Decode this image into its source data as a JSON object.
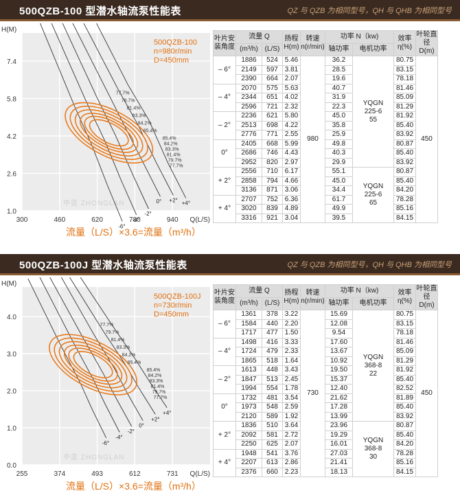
{
  "sections": [
    {
      "title": "500QZB-100 型潜水轴流泵性能表",
      "note": "QZ 与 QZB 为相同型号，QH 与 QHB 为相同型号",
      "params": [
        "500QZB-100",
        "n=980r/min",
        "D=450mm"
      ],
      "flow_caption": "流量（L/S）×3.6=流量（m³/h）",
      "watermark": "中蓝 ZHONGLAN",
      "chart_data": {
        "type": "line",
        "title": "",
        "xlabel": "Q(L/S)",
        "ylabel": "H(M)",
        "xlim": [
          300,
          1100
        ],
        "ylim": [
          1.0,
          8.6
        ],
        "x_ticks": [
          300,
          460,
          620,
          780,
          940
        ],
        "y_ticks": [
          1.0,
          2.6,
          4.2,
          5.8,
          7.4
        ],
        "blade_angle_labels": [
          "-6°",
          "-4°",
          "-2°",
          "0°",
          "+2°",
          "+4°"
        ],
        "efficiency_labels": [
          "77.7%",
          "79.7%",
          "81.4%",
          "83.3%",
          "84.2%",
          "85.4%"
        ],
        "series": [
          {
            "name": "-6°",
            "x": [
              524,
              597,
              664
            ],
            "y": [
              5.46,
              3.81,
              2.07
            ]
          },
          {
            "name": "-4°",
            "x": [
              575,
              651,
              721
            ],
            "y": [
              5.63,
              4.02,
              2.32
            ]
          },
          {
            "name": "-2°",
            "x": [
              621,
              698,
              771
            ],
            "y": [
              5.8,
              4.22,
              2.55
            ]
          },
          {
            "name": "0°",
            "x": [
              668,
              746,
              820
            ],
            "y": [
              5.99,
              4.43,
              2.97
            ]
          },
          {
            "name": "+2°",
            "x": [
              710,
              794,
              871
            ],
            "y": [
              6.17,
              4.66,
              3.06
            ]
          },
          {
            "name": "+4°",
            "x": [
              752,
              839,
              921
            ],
            "y": [
              6.36,
              4.89,
              3.04
            ]
          }
        ]
      },
      "table": {
        "headers": {
          "blade": "叶片安装角度",
          "flow": "流量 Q",
          "flow_m3h": "(m³/h)",
          "flow_ls": "(L/S)",
          "head": "扬程H(m)",
          "speed": "转速n(r/min)",
          "power": "功率 N（kw)",
          "shaft": "轴功率",
          "motor": "电机功率",
          "eff": "效率η(%)",
          "dia": "叶轮直径D(m)"
        },
        "speed": "980",
        "diameter": "450",
        "motors": [
          {
            "rows": 12,
            "label": "YQGN 225-6 55"
          },
          {
            "rows": 6,
            "label": "YQGN 225-6 65"
          }
        ],
        "groups": [
          {
            "angle": "– 6°",
            "rows": [
              [
                "1886",
                "524",
                "5.46",
                "36.2",
                "80.75"
              ],
              [
                "2149",
                "597",
                "3.81",
                "28.5",
                "83.15"
              ],
              [
                "2390",
                "664",
                "2.07",
                "19.6",
                "78.18"
              ]
            ]
          },
          {
            "angle": "– 4°",
            "rows": [
              [
                "2070",
                "575",
                "5.63",
                "40.7",
                "81.46"
              ],
              [
                "2344",
                "651",
                "4.02",
                "31.9",
                "85.09"
              ],
              [
                "2596",
                "721",
                "2.32",
                "22.3",
                "81.29"
              ]
            ]
          },
          {
            "angle": "– 2°",
            "rows": [
              [
                "2236",
                "621",
                "5.80",
                "45.0",
                "81.92"
              ],
              [
                "2513",
                "698",
                "4.22",
                "35.8",
                "85.40"
              ],
              [
                "2776",
                "771",
                "2.55",
                "25.9",
                "83.92"
              ]
            ]
          },
          {
            "angle": "0°",
            "rows": [
              [
                "2405",
                "668",
                "5.99",
                "49.8",
                "80.87"
              ],
              [
                "2686",
                "746",
                "4.43",
                "40.3",
                "85.40"
              ],
              [
                "2952",
                "820",
                "2.97",
                "29.9",
                "83.92"
              ]
            ]
          },
          {
            "angle": "+ 2°",
            "rows": [
              [
                "2556",
                "710",
                "6.17",
                "55.1",
                "80.87"
              ],
              [
                "2858",
                "794",
                "4.66",
                "45.0",
                "85.40"
              ],
              [
                "3136",
                "871",
                "3.06",
                "34.4",
                "84.20"
              ]
            ]
          },
          {
            "angle": "+ 4°",
            "rows": [
              [
                "2707",
                "752",
                "6.36",
                "61.7",
                "78.28"
              ],
              [
                "3020",
                "839",
                "4.89",
                "49.9",
                "85.16"
              ],
              [
                "3316",
                "921",
                "3.04",
                "39.5",
                "84.15"
              ]
            ]
          }
        ]
      }
    },
    {
      "title": "500QZB-100J 型潜水轴流泵性能表",
      "note": "QZ 与 QZB 为相同型号，QH 与 QHB 为相同型号",
      "params": [
        "500QZB-100J",
        "n=730r/min",
        "D=450mm"
      ],
      "flow_caption": "流量（L/S）×3.6=流量（m³/h）",
      "watermark": "中蓝 ZHONGLAN",
      "chart_data": {
        "type": "line",
        "title": "",
        "xlabel": "Q(L/S)",
        "ylabel": "H(M)",
        "xlim": [
          255,
          850
        ],
        "ylim": [
          0.0,
          4.8
        ],
        "x_ticks": [
          255,
          374,
          493,
          612,
          731
        ],
        "y_ticks": [
          0.0,
          1.0,
          2.0,
          3.0,
          4.0
        ],
        "blade_angle_labels": [
          "-6°",
          "-4°",
          "-2°",
          "0°",
          "+2°",
          "+4°"
        ],
        "efficiency_labels": [
          "77.7%",
          "79.7%",
          "81.4%",
          "83.3%",
          "84.2%",
          "85.4%"
        ],
        "series": [
          {
            "name": "-6°",
            "x": [
              378,
              440,
              477
            ],
            "y": [
              3.22,
              2.2,
              1.5
            ]
          },
          {
            "name": "-4°",
            "x": [
              416,
              479,
              518
            ],
            "y": [
              3.33,
              2.33,
              1.64
            ]
          },
          {
            "name": "-2°",
            "x": [
              448,
              513,
              554
            ],
            "y": [
              3.43,
              2.45,
              1.78
            ]
          },
          {
            "name": "0°",
            "x": [
              481,
              548,
              589
            ],
            "y": [
              3.54,
              2.59,
              1.92
            ]
          },
          {
            "name": "+2°",
            "x": [
              510,
              581,
              625
            ],
            "y": [
              3.64,
              2.72,
              2.07
            ]
          },
          {
            "name": "+4°",
            "x": [
              541,
              613,
              660
            ],
            "y": [
              3.76,
              2.86,
              2.23
            ]
          }
        ]
      },
      "table": {
        "headers": {
          "blade": "叶片安装角度",
          "flow": "流量 Q",
          "flow_m3h": "(m³/h)",
          "flow_ls": "(L/S)",
          "head": "扬程H(m)",
          "speed": "转速n(r/min)",
          "power": "功率 N（kw)",
          "shaft": "轴功率",
          "motor": "电机功率",
          "eff": "效率η(%)",
          "dia": "叶轮直径D(m)"
        },
        "speed": "730",
        "diameter": "450",
        "motors": [
          {
            "rows": 12,
            "label": "YQGN 368-8 22"
          },
          {
            "rows": 6,
            "label": "YQGN 368-8 30"
          }
        ],
        "groups": [
          {
            "angle": "– 6°",
            "rows": [
              [
                "1361",
                "378",
                "3.22",
                "15.69",
                "80.75"
              ],
              [
                "1584",
                "440",
                "2.20",
                "12.08",
                "83.15"
              ],
              [
                "1717",
                "477",
                "1.50",
                "9.54",
                "78.18"
              ]
            ]
          },
          {
            "angle": "– 4°",
            "rows": [
              [
                "1498",
                "416",
                "3.33",
                "17.60",
                "81.46"
              ],
              [
                "1724",
                "479",
                "2.33",
                "13.67",
                "85.09"
              ],
              [
                "1865",
                "518",
                "1.64",
                "10.92",
                "81.29"
              ]
            ]
          },
          {
            "angle": "– 2°",
            "rows": [
              [
                "1613",
                "448",
                "3.43",
                "19.50",
                "81.92"
              ],
              [
                "1847",
                "513",
                "2.45",
                "15.37",
                "85.40"
              ],
              [
                "1994",
                "554",
                "1.78",
                "12.40",
                "82.52"
              ]
            ]
          },
          {
            "angle": "0°",
            "rows": [
              [
                "1732",
                "481",
                "3.54",
                "21.62",
                "81.89"
              ],
              [
                "1973",
                "548",
                "2.59",
                "17.28",
                "85.40"
              ],
              [
                "2120",
                "589",
                "1.92",
                "13.99",
                "83.92"
              ]
            ]
          },
          {
            "angle": "+ 2°",
            "rows": [
              [
                "1836",
                "510",
                "3.64",
                "23.96",
                "80.87"
              ],
              [
                "2092",
                "581",
                "2.72",
                "19.29",
                "85.40"
              ],
              [
                "2250",
                "625",
                "2.07",
                "16.01",
                "84.20"
              ]
            ]
          },
          {
            "angle": "+ 4°",
            "rows": [
              [
                "1948",
                "541",
                "3.76",
                "27.03",
                "78.28"
              ],
              [
                "2207",
                "613",
                "2.86",
                "21.41",
                "85.16"
              ],
              [
                "2376",
                "660",
                "2.23",
                "18.13",
                "84.15"
              ]
            ]
          }
        ]
      }
    }
  ]
}
